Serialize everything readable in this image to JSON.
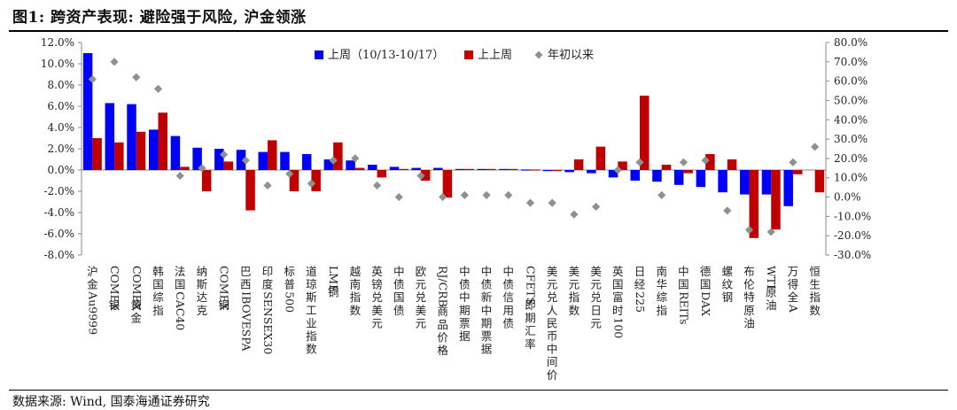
{
  "header": {
    "title": "图1: 跨资产表现: 避险强于风险, 沪金领涨"
  },
  "footer": {
    "source": "数据来源: Wind, 国泰海通证券研究"
  },
  "colors": {
    "last_week": "#0000FF",
    "prev_week": "#C00000",
    "ytd": "#909090",
    "axis": "#888888"
  },
  "chart_data": {
    "type": "bar",
    "title": "图1: 跨资产表现: 避险强于风险, 沪金领涨",
    "legend_position": "top",
    "y_left": {
      "min": -8,
      "max": 12,
      "step": 2,
      "ticks": [
        "-8.0%",
        "-6.0%",
        "-4.0%",
        "-2.0%",
        "0.0%",
        "2.0%",
        "4.0%",
        "6.0%",
        "8.0%",
        "10.0%",
        "12.0%"
      ]
    },
    "y_right": {
      "min": -30,
      "max": 80,
      "step": 10,
      "ticks": [
        "-30.0%",
        "-20.0%",
        "-10.0%",
        "0.0%",
        "10.0%",
        "20.0%",
        "30.0%",
        "40.0%",
        "50.0%",
        "60.0%",
        "70.0%",
        "80.0%"
      ]
    },
    "categories": [
      "沪金Au9999",
      "COMEX银",
      "COMEX黄金",
      "韩国综指",
      "法国CAC40",
      "纳斯达克",
      "COMEX铜",
      "巴西IBOVESPA",
      "印度SENSEX30",
      "标普500",
      "道琼斯工业指数",
      "LME铜",
      "越南指数",
      "英镑兑美元",
      "中债国债",
      "欧元兑美元",
      "RJ/CRB商品价格",
      "中债中期票据",
      "中债新中期票据",
      "中债信用债",
      "CFETS即期汇率",
      "美元兑人民币中间价",
      "美元指数",
      "美元兑日元",
      "英国富时100",
      "日经225",
      "南华综指",
      "中国REITs",
      "德国DAX",
      "螺纹钢",
      "布伦特原油",
      "WTI原油",
      "万得全A",
      "恒生指数"
    ],
    "series": [
      {
        "name": "上周（10/13-10/17）",
        "axis": "left",
        "kind": "bar",
        "values": [
          11.0,
          6.3,
          6.2,
          3.8,
          3.2,
          2.1,
          2.0,
          1.9,
          1.7,
          1.7,
          1.5,
          1.0,
          0.9,
          0.5,
          0.3,
          0.2,
          0.2,
          0.1,
          0.1,
          0.1,
          0.05,
          -0.1,
          -0.2,
          -0.3,
          -0.7,
          -1.0,
          -1.1,
          -1.4,
          -1.6,
          -2.1,
          -2.3,
          -2.3,
          -3.4,
          0.0
        ]
      },
      {
        "name": "上上周",
        "axis": "left",
        "kind": "bar",
        "values": [
          3.0,
          2.6,
          3.6,
          5.4,
          0.3,
          -2.0,
          0.8,
          -3.8,
          2.8,
          -2.0,
          -2.0,
          2.6,
          0.2,
          -0.7,
          0.1,
          -1.0,
          -2.6,
          0.1,
          0.1,
          0.1,
          0.05,
          -0.1,
          1.0,
          2.2,
          0.8,
          7.0,
          0.5,
          -0.3,
          1.5,
          1.0,
          -6.4,
          -5.6,
          -0.4,
          -2.1
        ]
      },
      {
        "name": "年初以来",
        "axis": "right",
        "kind": "marker",
        "values": [
          61,
          70,
          62,
          56,
          11,
          15,
          22,
          19,
          6,
          12,
          7,
          19,
          20,
          6,
          0,
          11,
          0,
          1,
          1,
          1,
          -3,
          -3,
          -9,
          -5,
          14,
          18,
          1,
          18,
          19,
          -7,
          -17,
          -18,
          18,
          26
        ]
      }
    ]
  }
}
